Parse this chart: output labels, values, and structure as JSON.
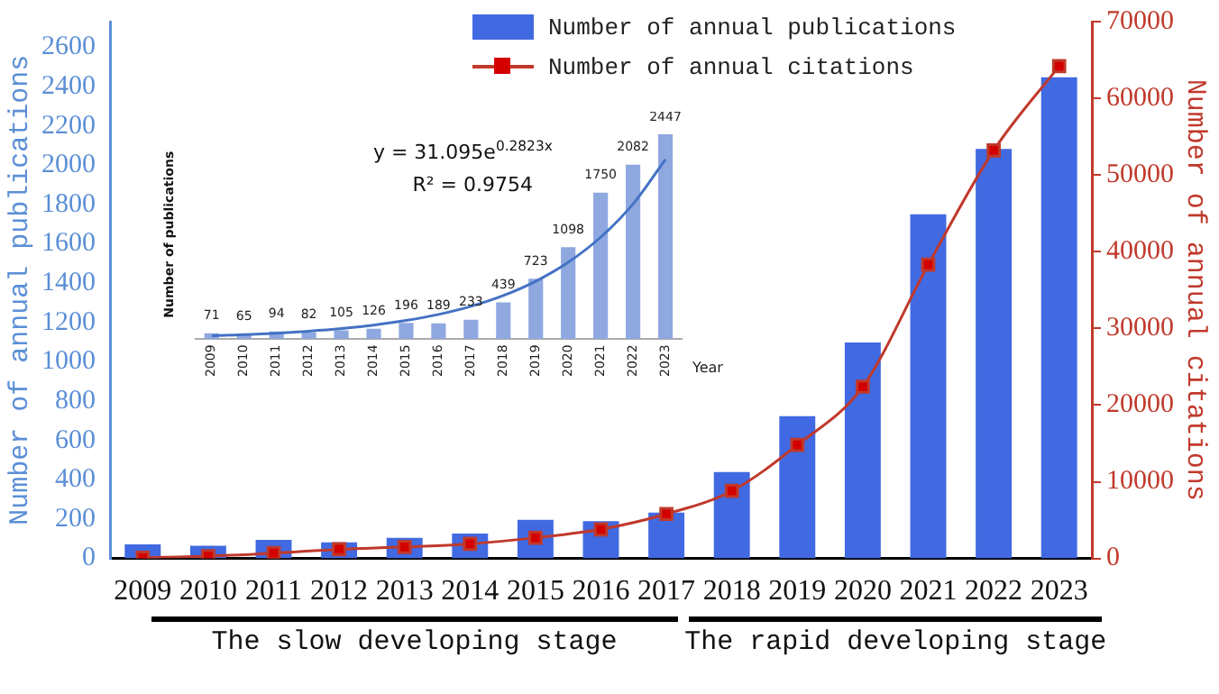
{
  "chart_data": [
    {
      "type": "bar",
      "categories": [
        "2009",
        "2010",
        "2011",
        "2012",
        "2013",
        "2014",
        "2015",
        "2016",
        "2017",
        "2018",
        "2019",
        "2020",
        "2021",
        "2022",
        "2023"
      ],
      "series": [
        {
          "name": "Number of annual publications",
          "color": "#4169e1",
          "values": [
            71,
            65,
            94,
            82,
            105,
            126,
            196,
            189,
            233,
            439,
            723,
            1098,
            1750,
            2082,
            2447
          ]
        },
        {
          "name": "Number of annual citations",
          "type": "line",
          "axis": "y2",
          "color": "#d40000",
          "marker": "square",
          "values": [
            100,
            300,
            700,
            1200,
            1500,
            1900,
            2700,
            3800,
            5800,
            8800,
            14800,
            22400,
            38300,
            53200,
            64200
          ]
        }
      ],
      "ylabel": "Number of annual publications",
      "y2label": "Number of annual citations",
      "ylim": [
        0,
        2730
      ],
      "yticks": [
        0,
        200,
        400,
        600,
        800,
        1000,
        1200,
        1400,
        1600,
        1800,
        2000,
        2200,
        2400,
        2600
      ],
      "y2lim": [
        0,
        70000
      ],
      "y2ticks": [
        0,
        10000,
        20000,
        30000,
        40000,
        50000,
        60000,
        70000
      ],
      "annotations": [
        "The slow developing stage",
        "The rapid developing stage"
      ],
      "legend": "top",
      "grid": false
    },
    {
      "type": "bar",
      "categories": [
        "2009",
        "2010",
        "2011",
        "2012",
        "2013",
        "2014",
        "2015",
        "2016",
        "2017",
        "2018",
        "2019",
        "2020",
        "2021",
        "2022",
        "2023"
      ],
      "series": [
        {
          "color": "#8fa8e0",
          "values": [
            71,
            65,
            94,
            82,
            105,
            126,
            196,
            189,
            233,
            439,
            723,
            1098,
            1750,
            2082,
            2447
          ],
          "value_labels": [
            "71",
            "65",
            "94",
            "82",
            "105",
            "126",
            "196",
            "189",
            "233",
            "439",
            "723",
            "1098",
            "1750",
            "2082",
            "2447"
          ]
        },
        {
          "type": "line",
          "color": "#4472c4",
          "marker": "none",
          "values": [
            41,
            55,
            72,
            96,
            127,
            169,
            224,
            296,
            393,
            522,
            692,
            918,
            1217,
            1614,
            2146
          ]
        }
      ],
      "xlabel": "Year",
      "ylabel": "Number of publications",
      "annotations": [
        "y = 31.095e$^{0.2823x}$",
        "R² = 0.9754"
      ],
      "tick_labels": "x",
      "grid": false
    }
  ]
}
